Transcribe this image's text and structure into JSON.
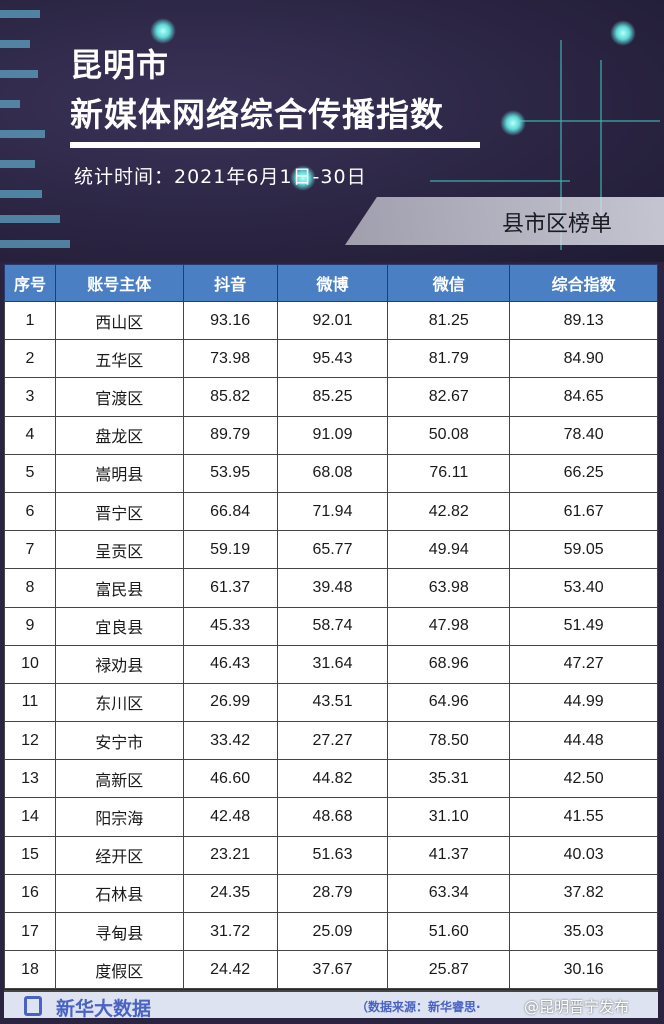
{
  "header": {
    "title_line1": "昆明市",
    "title_line2": "新媒体网络综合传播指数",
    "period": "统计时间：2021年6月1日-30日",
    "category": "县市区榜单"
  },
  "table": {
    "columns": [
      "序号",
      "账号主体",
      "抖音",
      "微博",
      "微信",
      "综合指数"
    ],
    "rows": [
      [
        "1",
        "西山区",
        "93.16",
        "92.01",
        "81.25",
        "89.13"
      ],
      [
        "2",
        "五华区",
        "73.98",
        "95.43",
        "81.79",
        "84.90"
      ],
      [
        "3",
        "官渡区",
        "85.82",
        "85.25",
        "82.67",
        "84.65"
      ],
      [
        "4",
        "盘龙区",
        "89.79",
        "91.09",
        "50.08",
        "78.40"
      ],
      [
        "5",
        "嵩明县",
        "53.95",
        "68.08",
        "76.11",
        "66.25"
      ],
      [
        "6",
        "晋宁区",
        "66.84",
        "71.94",
        "42.82",
        "61.67"
      ],
      [
        "7",
        "呈贡区",
        "59.19",
        "65.77",
        "49.94",
        "59.05"
      ],
      [
        "8",
        "富民县",
        "61.37",
        "39.48",
        "63.98",
        "53.40"
      ],
      [
        "9",
        "宜良县",
        "45.33",
        "58.74",
        "47.98",
        "51.49"
      ],
      [
        "10",
        "禄劝县",
        "46.43",
        "31.64",
        "68.96",
        "47.27"
      ],
      [
        "11",
        "东川区",
        "26.99",
        "43.51",
        "64.96",
        "44.99"
      ],
      [
        "12",
        "安宁市",
        "33.42",
        "27.27",
        "78.50",
        "44.48"
      ],
      [
        "13",
        "高新区",
        "46.60",
        "44.82",
        "35.31",
        "42.50"
      ],
      [
        "14",
        "阳宗海",
        "42.48",
        "48.68",
        "31.10",
        "41.55"
      ],
      [
        "15",
        "经开区",
        "23.21",
        "51.63",
        "41.37",
        "40.03"
      ],
      [
        "16",
        "石林县",
        "24.35",
        "28.79",
        "63.34",
        "37.82"
      ],
      [
        "17",
        "寻甸县",
        "31.72",
        "25.09",
        "51.60",
        "35.03"
      ],
      [
        "18",
        "度假区",
        "24.42",
        "37.67",
        "25.87",
        "30.16"
      ]
    ]
  },
  "footer": {
    "logo": "新华大数据",
    "source": "（数据来源：新华睿思·",
    "watermark": "@昆明晋宁发布"
  },
  "colors": {
    "header_bg": "#4a7fc4",
    "banner_bg": "#2a2442",
    "accent": "#3fb3b0",
    "logo": "#4a62c4"
  }
}
